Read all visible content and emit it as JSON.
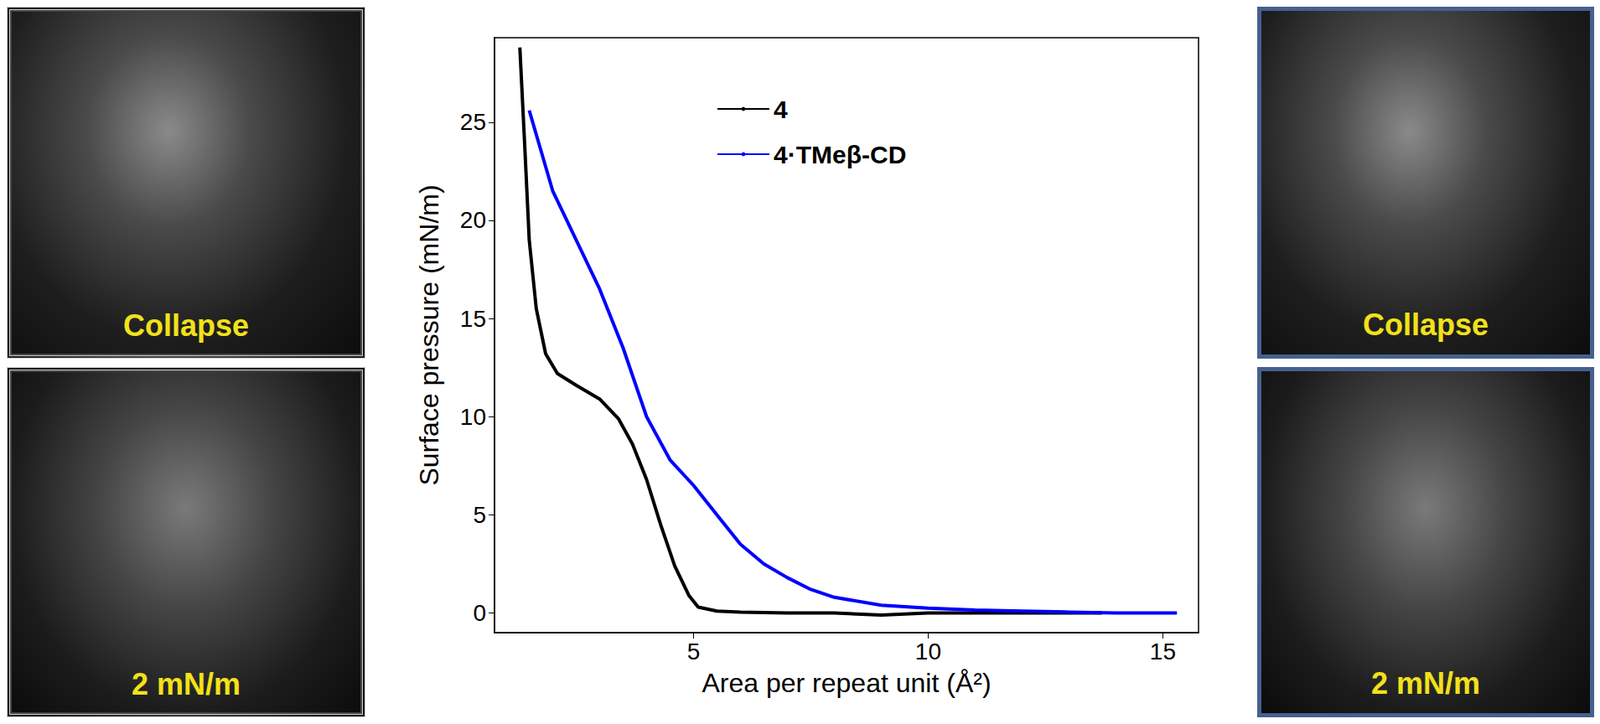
{
  "chart_data": {
    "type": "line",
    "xlabel": "Area per repeat unit (Å²)",
    "ylabel": "Surface pressure (mN/m)",
    "xlim": [
      0.76,
      15.76
    ],
    "xticks": [
      5,
      10,
      15
    ],
    "ylim": [
      -1,
      29.3
    ],
    "yticks": [
      0,
      5,
      10,
      15,
      20,
      25
    ],
    "grid": false,
    "legend": "upper center",
    "series": [
      {
        "name": "4",
        "color": "#000000",
        "x": [
          1.3,
          1.4,
          1.5,
          1.65,
          1.85,
          2.1,
          2.5,
          3.0,
          3.4,
          3.7,
          4.0,
          4.3,
          4.6,
          4.9,
          5.1,
          5.5,
          6,
          7,
          8,
          9,
          10,
          11,
          12,
          13,
          13.7
        ],
        "values": [
          28.8,
          24,
          19,
          15.5,
          13.2,
          12.2,
          11.6,
          10.9,
          9.9,
          8.6,
          6.8,
          4.5,
          2.4,
          0.9,
          0.3,
          0.1,
          0.05,
          0,
          0,
          -0.1,
          0,
          0,
          0,
          0,
          0
        ]
      },
      {
        "name": "4·TMeβ-CD",
        "color": "#0000ff",
        "x": [
          1.5,
          2,
          2.5,
          3,
          3.5,
          4,
          4.5,
          5,
          5.5,
          6,
          6.5,
          7,
          7.5,
          8,
          9,
          10,
          11,
          12,
          13,
          14,
          15.3
        ],
        "values": [
          25.6,
          21.5,
          19,
          16.5,
          13.5,
          10,
          7.8,
          6.5,
          5,
          3.5,
          2.5,
          1.8,
          1.2,
          0.8,
          0.4,
          0.25,
          0.15,
          0.1,
          0.05,
          0,
          0
        ]
      }
    ]
  },
  "images": {
    "left": [
      {
        "label": "Collapse"
      },
      {
        "label": "2 mN/m"
      }
    ],
    "right": [
      {
        "label": "Collapse"
      },
      {
        "label": "2 mN/m"
      }
    ]
  }
}
